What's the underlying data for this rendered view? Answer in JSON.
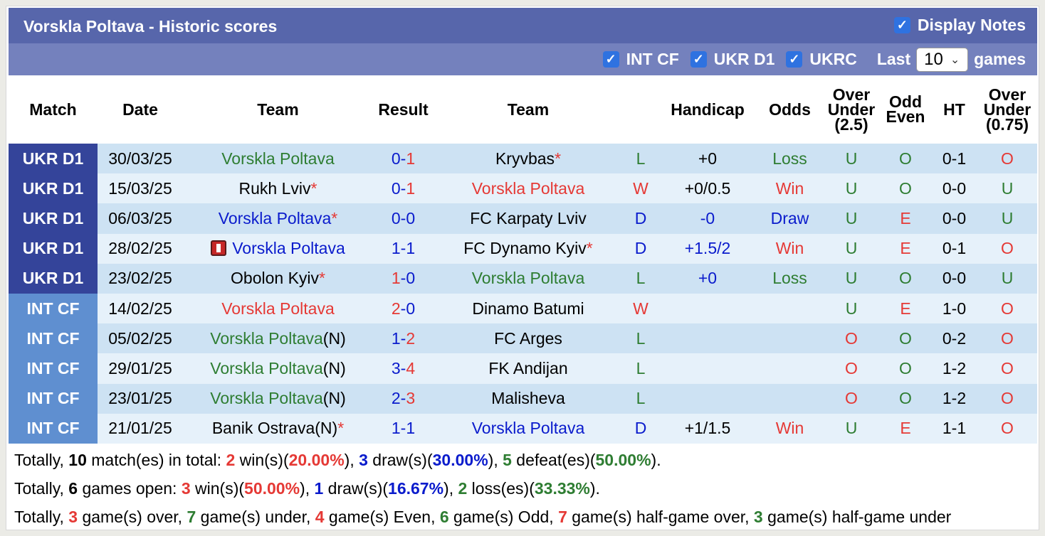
{
  "header": {
    "title": "Vorskla Poltava - Historic scores",
    "display_notes_label": "Display Notes",
    "display_notes_checked": true
  },
  "filters": {
    "items": [
      {
        "label": "INT CF",
        "checked": true
      },
      {
        "label": "UKR D1",
        "checked": true
      },
      {
        "label": "UKRC",
        "checked": true
      }
    ],
    "last_label": "Last",
    "games_count": "10",
    "games_label": "games",
    "check_glyph": "✓",
    "chevron_glyph": "⌄"
  },
  "columns": [
    "Match",
    "Date",
    "Team",
    "Result",
    "Team",
    "",
    "Handicap",
    "Odds",
    "Over Under (2.5)",
    "Odd Even",
    "HT",
    "Over Under (0.75)"
  ],
  "column_lines": {
    "ou25": [
      "Over",
      "Under",
      "(2.5)"
    ],
    "oe": [
      "Odd",
      "Even"
    ],
    "ou075": [
      "Over",
      "Under",
      "(0.75)"
    ]
  },
  "colors": {
    "title_bar": "#5766ab",
    "filter_bar": "#7481bd",
    "ukr_d1": "#34449a",
    "int_cf": "#5f8fd0",
    "row_dark": "#cde2f3",
    "row_light": "#e6f1fa",
    "green": "#2e7d32",
    "red": "#e53935",
    "blue": "#0a1bcc"
  },
  "rows": [
    {
      "comp": "UKR D1",
      "date": "30/03/25",
      "home": "Vorskla Poltava",
      "home_color": "green",
      "home_star": false,
      "home_suffix": "",
      "home_redcard": false,
      "score_home": "0",
      "score_home_color": "blue",
      "score_away": "1",
      "score_away_color": "red",
      "away": "Kryvbas",
      "away_color": "black",
      "away_star": true,
      "wl": "L",
      "wl_color": "green",
      "handicap": "+0",
      "handicap_color": "black",
      "odds": "Loss",
      "odds_color": "green",
      "ou": "U",
      "ou_color": "green",
      "oe": "O",
      "oe_color": "green",
      "ht": "0-1",
      "ou2": "O",
      "ou2_color": "red"
    },
    {
      "comp": "UKR D1",
      "date": "15/03/25",
      "home": "Rukh Lviv",
      "home_color": "black",
      "home_star": true,
      "home_suffix": "",
      "home_redcard": false,
      "score_home": "0",
      "score_home_color": "blue",
      "score_away": "1",
      "score_away_color": "red",
      "away": "Vorskla Poltava",
      "away_color": "red",
      "away_star": false,
      "wl": "W",
      "wl_color": "red",
      "handicap": "+0/0.5",
      "handicap_color": "black",
      "odds": "Win",
      "odds_color": "red",
      "ou": "U",
      "ou_color": "green",
      "oe": "O",
      "oe_color": "green",
      "ht": "0-0",
      "ou2": "U",
      "ou2_color": "green"
    },
    {
      "comp": "UKR D1",
      "date": "06/03/25",
      "home": "Vorskla Poltava",
      "home_color": "blue",
      "home_star": true,
      "home_suffix": "",
      "home_redcard": false,
      "score_home": "0",
      "score_home_color": "blue",
      "score_away": "0",
      "score_away_color": "blue",
      "away": "FC Karpaty Lviv",
      "away_color": "black",
      "away_star": false,
      "wl": "D",
      "wl_color": "blue",
      "handicap": "-0",
      "handicap_color": "blue",
      "odds": "Draw",
      "odds_color": "blue",
      "ou": "U",
      "ou_color": "green",
      "oe": "E",
      "oe_color": "red",
      "ht": "0-0",
      "ou2": "U",
      "ou2_color": "green"
    },
    {
      "comp": "UKR D1",
      "date": "28/02/25",
      "home": "Vorskla Poltava",
      "home_color": "blue",
      "home_star": false,
      "home_suffix": "",
      "home_redcard": true,
      "score_home": "1",
      "score_home_color": "blue",
      "score_away": "1",
      "score_away_color": "blue",
      "away": "FC Dynamo Kyiv",
      "away_color": "black",
      "away_star": true,
      "wl": "D",
      "wl_color": "blue",
      "handicap": "+1.5/2",
      "handicap_color": "blue",
      "odds": "Win",
      "odds_color": "red",
      "ou": "U",
      "ou_color": "green",
      "oe": "E",
      "oe_color": "red",
      "ht": "0-1",
      "ou2": "O",
      "ou2_color": "red"
    },
    {
      "comp": "UKR D1",
      "date": "23/02/25",
      "home": "Obolon Kyiv",
      "home_color": "black",
      "home_star": true,
      "home_suffix": "",
      "home_redcard": false,
      "score_home": "1",
      "score_home_color": "red",
      "score_away": "0",
      "score_away_color": "blue",
      "away": "Vorskla Poltava",
      "away_color": "green",
      "away_star": false,
      "wl": "L",
      "wl_color": "green",
      "handicap": "+0",
      "handicap_color": "blue",
      "odds": "Loss",
      "odds_color": "green",
      "ou": "U",
      "ou_color": "green",
      "oe": "O",
      "oe_color": "green",
      "ht": "0-0",
      "ou2": "U",
      "ou2_color": "green"
    },
    {
      "comp": "INT CF",
      "date": "14/02/25",
      "home": "Vorskla Poltava",
      "home_color": "red",
      "home_star": false,
      "home_suffix": "",
      "home_redcard": false,
      "score_home": "2",
      "score_home_color": "red",
      "score_away": "0",
      "score_away_color": "blue",
      "away": "Dinamo Batumi",
      "away_color": "black",
      "away_star": false,
      "wl": "W",
      "wl_color": "red",
      "handicap": "",
      "handicap_color": "black",
      "odds": "",
      "odds_color": "black",
      "ou": "U",
      "ou_color": "green",
      "oe": "E",
      "oe_color": "red",
      "ht": "1-0",
      "ou2": "O",
      "ou2_color": "red"
    },
    {
      "comp": "INT CF",
      "date": "05/02/25",
      "home": "Vorskla Poltava",
      "home_color": "green",
      "home_star": false,
      "home_suffix": "(N)",
      "home_redcard": false,
      "score_home": "1",
      "score_home_color": "blue",
      "score_away": "2",
      "score_away_color": "red",
      "away": "FC Arges",
      "away_color": "black",
      "away_star": false,
      "wl": "L",
      "wl_color": "green",
      "handicap": "",
      "handicap_color": "black",
      "odds": "",
      "odds_color": "black",
      "ou": "O",
      "ou_color": "red",
      "oe": "O",
      "oe_color": "green",
      "ht": "0-2",
      "ou2": "O",
      "ou2_color": "red"
    },
    {
      "comp": "INT CF",
      "date": "29/01/25",
      "home": "Vorskla Poltava",
      "home_color": "green",
      "home_star": false,
      "home_suffix": "(N)",
      "home_redcard": false,
      "score_home": "3",
      "score_home_color": "blue",
      "score_away": "4",
      "score_away_color": "red",
      "away": "FK Andijan",
      "away_color": "black",
      "away_star": false,
      "wl": "L",
      "wl_color": "green",
      "handicap": "",
      "handicap_color": "black",
      "odds": "",
      "odds_color": "black",
      "ou": "O",
      "ou_color": "red",
      "oe": "O",
      "oe_color": "green",
      "ht": "1-2",
      "ou2": "O",
      "ou2_color": "red"
    },
    {
      "comp": "INT CF",
      "date": "23/01/25",
      "home": "Vorskla Poltava",
      "home_color": "green",
      "home_star": false,
      "home_suffix": "(N)",
      "home_redcard": false,
      "score_home": "2",
      "score_home_color": "blue",
      "score_away": "3",
      "score_away_color": "red",
      "away": "Malisheva",
      "away_color": "black",
      "away_star": false,
      "wl": "L",
      "wl_color": "green",
      "handicap": "",
      "handicap_color": "black",
      "odds": "",
      "odds_color": "black",
      "ou": "O",
      "ou_color": "red",
      "oe": "O",
      "oe_color": "green",
      "ht": "1-2",
      "ou2": "O",
      "ou2_color": "red"
    },
    {
      "comp": "INT CF",
      "date": "21/01/25",
      "home": "Banik Ostrava(N)",
      "home_color": "black",
      "home_star": true,
      "home_suffix": "",
      "home_redcard": false,
      "score_home": "1",
      "score_home_color": "blue",
      "score_away": "1",
      "score_away_color": "blue",
      "away": "Vorskla Poltava",
      "away_color": "blue",
      "away_star": false,
      "wl": "D",
      "wl_color": "blue",
      "handicap": "+1/1.5",
      "handicap_color": "black",
      "odds": "Win",
      "odds_color": "red",
      "ou": "U",
      "ou_color": "green",
      "oe": "E",
      "oe_color": "red",
      "ht": "1-1",
      "ou2": "O",
      "ou2_color": "red"
    }
  ],
  "summary": {
    "line1": [
      {
        "t": "Totally, ",
        "c": "black",
        "b": false
      },
      {
        "t": "10",
        "c": "black",
        "b": true
      },
      {
        "t": " match(es) in total: ",
        "c": "black",
        "b": false
      },
      {
        "t": "2",
        "c": "red",
        "b": true
      },
      {
        "t": " win(s)(",
        "c": "black",
        "b": false
      },
      {
        "t": "20.00%",
        "c": "red",
        "b": true
      },
      {
        "t": "), ",
        "c": "black",
        "b": false
      },
      {
        "t": "3",
        "c": "blue",
        "b": true
      },
      {
        "t": " draw(s)(",
        "c": "black",
        "b": false
      },
      {
        "t": "30.00%",
        "c": "blue",
        "b": true
      },
      {
        "t": "), ",
        "c": "black",
        "b": false
      },
      {
        "t": "5",
        "c": "green",
        "b": true
      },
      {
        "t": " defeat(es)(",
        "c": "black",
        "b": false
      },
      {
        "t": "50.00%",
        "c": "green",
        "b": true
      },
      {
        "t": ").",
        "c": "black",
        "b": false
      }
    ],
    "line2": [
      {
        "t": "Totally, ",
        "c": "black",
        "b": false
      },
      {
        "t": "6",
        "c": "black",
        "b": true
      },
      {
        "t": " games open: ",
        "c": "black",
        "b": false
      },
      {
        "t": "3",
        "c": "red",
        "b": true
      },
      {
        "t": " win(s)(",
        "c": "black",
        "b": false
      },
      {
        "t": "50.00%",
        "c": "red",
        "b": true
      },
      {
        "t": "), ",
        "c": "black",
        "b": false
      },
      {
        "t": "1",
        "c": "blue",
        "b": true
      },
      {
        "t": " draw(s)(",
        "c": "black",
        "b": false
      },
      {
        "t": "16.67%",
        "c": "blue",
        "b": true
      },
      {
        "t": "), ",
        "c": "black",
        "b": false
      },
      {
        "t": "2",
        "c": "green",
        "b": true
      },
      {
        "t": " loss(es)(",
        "c": "black",
        "b": false
      },
      {
        "t": "33.33%",
        "c": "green",
        "b": true
      },
      {
        "t": ").",
        "c": "black",
        "b": false
      }
    ],
    "line3": [
      {
        "t": "Totally, ",
        "c": "black",
        "b": false
      },
      {
        "t": "3",
        "c": "red",
        "b": true
      },
      {
        "t": " game(s) over, ",
        "c": "black",
        "b": false
      },
      {
        "t": "7",
        "c": "green",
        "b": true
      },
      {
        "t": " game(s) under, ",
        "c": "black",
        "b": false
      },
      {
        "t": "4",
        "c": "red",
        "b": true
      },
      {
        "t": " game(s) Even, ",
        "c": "black",
        "b": false
      },
      {
        "t": "6",
        "c": "green",
        "b": true
      },
      {
        "t": " game(s) Odd, ",
        "c": "black",
        "b": false
      },
      {
        "t": "7",
        "c": "red",
        "b": true
      },
      {
        "t": " game(s) half-game over, ",
        "c": "black",
        "b": false
      },
      {
        "t": "3",
        "c": "green",
        "b": true
      },
      {
        "t": " game(s) half-game under",
        "c": "black",
        "b": false
      }
    ]
  }
}
